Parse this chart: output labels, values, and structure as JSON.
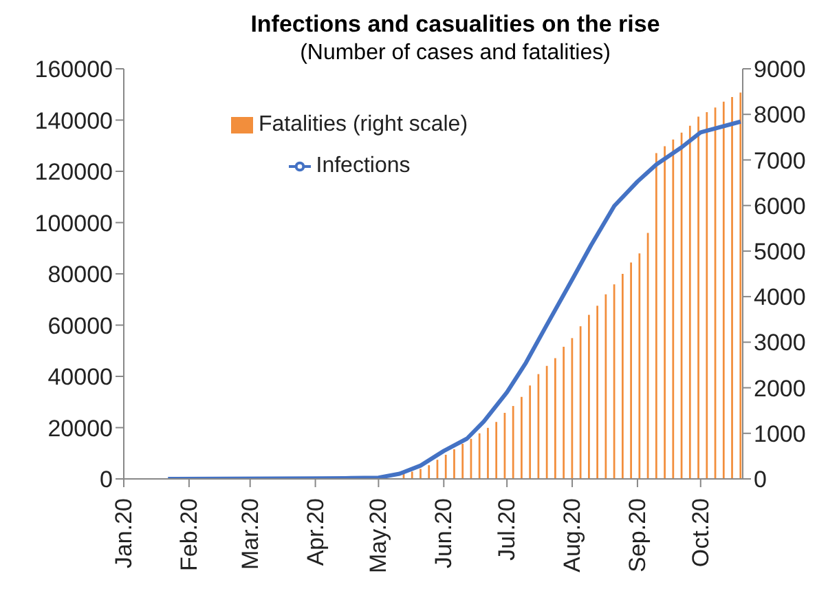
{
  "chart_data": {
    "type": "bar",
    "title": "Infections and casualities on the rise",
    "subtitle": "(Number of cases and fatalities)",
    "xlim": [
      "2020-01-01",
      "2020-10-21"
    ],
    "xticks": [
      {
        "value": "2020-01-01",
        "label": "Jan.20"
      },
      {
        "value": "2020-02-01",
        "label": "Feb.20"
      },
      {
        "value": "2020-03-01",
        "label": "Mar.20"
      },
      {
        "value": "2020-04-01",
        "label": "Apr.20"
      },
      {
        "value": "2020-05-01",
        "label": "May.20"
      },
      {
        "value": "2020-06-01",
        "label": "Jun.20"
      },
      {
        "value": "2020-07-01",
        "label": "Jul.20"
      },
      {
        "value": "2020-08-01",
        "label": "Aug.20"
      },
      {
        "value": "2020-09-01",
        "label": "Sep.20"
      },
      {
        "value": "2020-10-01",
        "label": "Oct.20"
      }
    ],
    "ylim": [
      0,
      160000
    ],
    "yticks": [
      0,
      20000,
      40000,
      60000,
      80000,
      100000,
      120000,
      140000,
      160000
    ],
    "y2lim": [
      0,
      9000
    ],
    "y2ticks": [
      0,
      1000,
      2000,
      3000,
      4000,
      5000,
      6000,
      7000,
      8000,
      9000
    ],
    "legend": "top left",
    "grid": false,
    "series": [
      {
        "name": "Fatalities (right scale)",
        "axis": "y2",
        "color": "#f28e3c",
        "x": [
          "2020-05-13",
          "2020-05-17",
          "2020-05-21",
          "2020-05-25",
          "2020-05-29",
          "2020-06-02",
          "2020-06-06",
          "2020-06-10",
          "2020-06-14",
          "2020-06-18",
          "2020-06-22",
          "2020-06-26",
          "2020-06-30",
          "2020-07-04",
          "2020-07-08",
          "2020-07-12",
          "2020-07-16",
          "2020-07-20",
          "2020-07-24",
          "2020-07-28",
          "2020-08-01",
          "2020-08-05",
          "2020-08-09",
          "2020-08-13",
          "2020-08-17",
          "2020-08-21",
          "2020-08-25",
          "2020-08-29",
          "2020-09-02",
          "2020-09-06",
          "2020-09-10",
          "2020-09-14",
          "2020-09-18",
          "2020-09-22",
          "2020-09-26",
          "2020-09-30",
          "2020-10-04",
          "2020-10-08",
          "2020-10-12",
          "2020-10-16",
          "2020-10-20"
        ],
        "values": [
          110,
          160,
          220,
          300,
          420,
          530,
          650,
          770,
          880,
          1000,
          1120,
          1250,
          1450,
          1600,
          1800,
          2050,
          2300,
          2480,
          2650,
          2900,
          3090,
          3350,
          3600,
          3800,
          4050,
          4270,
          4500,
          4750,
          4950,
          5400,
          7150,
          7300,
          7450,
          7600,
          7750,
          7950,
          8050,
          8150,
          8280,
          8380,
          8480
        ]
      },
      {
        "name": "Infections",
        "type": "line",
        "color": "#4472c4",
        "x": [
          "2020-01-22",
          "2020-04-01",
          "2020-04-15",
          "2020-05-01",
          "2020-05-11",
          "2020-05-21",
          "2020-06-01",
          "2020-06-12",
          "2020-06-20",
          "2020-07-01",
          "2020-07-10",
          "2020-07-19",
          "2020-08-01",
          "2020-08-10",
          "2020-08-21",
          "2020-09-01",
          "2020-09-10",
          "2020-09-22",
          "2020-10-01",
          "2020-10-20"
        ],
        "values": [
          0,
          200,
          300,
          500,
          2000,
          5200,
          10900,
          15700,
          22400,
          33800,
          45300,
          58700,
          77800,
          91200,
          106500,
          116000,
          122700,
          129400,
          135200,
          139400
        ]
      }
    ]
  }
}
